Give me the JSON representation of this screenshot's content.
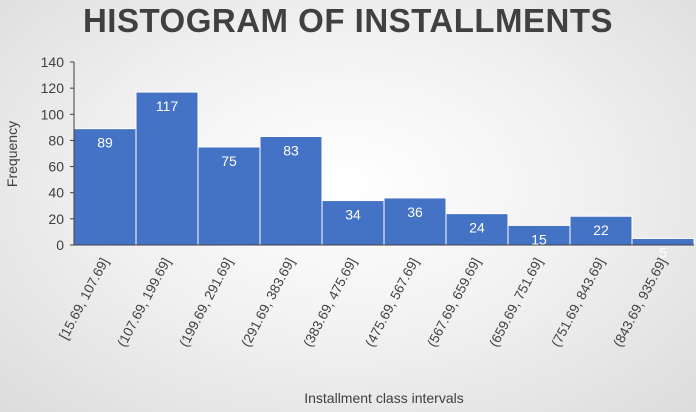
{
  "chart_data": {
    "type": "bar",
    "title": "HISTOGRAM OF INSTALLMENTS",
    "xlabel": "Installment class intervals",
    "ylabel": "Frequency",
    "ylim": [
      0,
      140
    ],
    "yticks": [
      0,
      20,
      40,
      60,
      80,
      100,
      120,
      140
    ],
    "grid": false,
    "legend": "none",
    "bar_color": "#4472C4",
    "label_color": "#FFFFFF",
    "categories": [
      "[15.69, 107.69]",
      "(107.69, 199.69]",
      "(199.69, 291.69]",
      "(291.69, 383.69]",
      "(383.69, 475.69]",
      "(475.69, 567.69]",
      "(567.69, 659.69]",
      "(659.69, 751.69]",
      "(751.69, 843.69]",
      "(843.69, 935.69]"
    ],
    "values": [
      89,
      117,
      75,
      83,
      34,
      36,
      24,
      15,
      22,
      5
    ]
  }
}
